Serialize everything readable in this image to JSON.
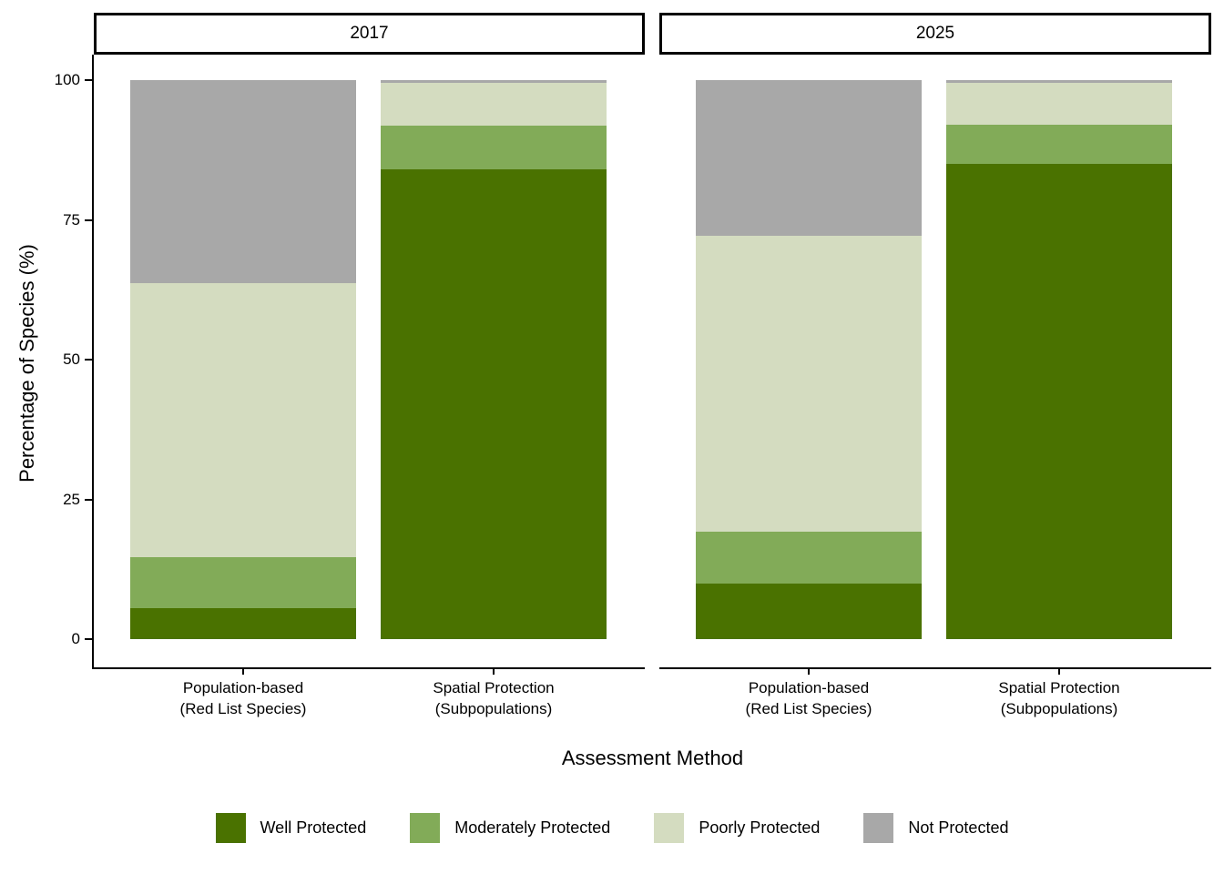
{
  "chart_data": {
    "type": "bar",
    "stacked": true,
    "orientation": "vertical",
    "title": "",
    "xlabel": "Assessment Method",
    "ylabel": "Percentage of Species (%)",
    "ylim": [
      0,
      100
    ],
    "yticks": [
      0,
      25,
      50,
      75,
      100
    ],
    "grid": false,
    "legend_position": "bottom",
    "series": [
      "Well Protected",
      "Moderately Protected",
      "Poorly Protected",
      "Not Protected"
    ],
    "colors": [
      "#4A7200",
      "#82AB58",
      "#D4DCC0",
      "#A8A8A8"
    ],
    "facets": [
      {
        "label": "2017",
        "categories": [
          [
            "Population-based",
            "(Red List Species)"
          ],
          [
            "Spatial Protection",
            "(Subpopulations)"
          ]
        ],
        "values": [
          [
            5.5,
            9.1,
            49.1,
            36.3
          ],
          [
            84.0,
            7.8,
            7.7,
            0.5
          ]
        ]
      },
      {
        "label": "2025",
        "categories": [
          [
            "Population-based",
            "(Red List Species)"
          ],
          [
            "Spatial Protection",
            "(Subpopulations)"
          ]
        ],
        "values": [
          [
            10.0,
            9.2,
            52.9,
            27.9
          ],
          [
            85.0,
            7.0,
            7.5,
            0.5
          ]
        ]
      }
    ]
  },
  "legend": {
    "items": [
      {
        "label": "Well Protected",
        "color": "#4A7200"
      },
      {
        "label": "Moderately Protected",
        "color": "#82AB58"
      },
      {
        "label": "Poorly Protected",
        "color": "#D4DCC0"
      },
      {
        "label": "Not Protected",
        "color": "#A8A8A8"
      }
    ]
  }
}
